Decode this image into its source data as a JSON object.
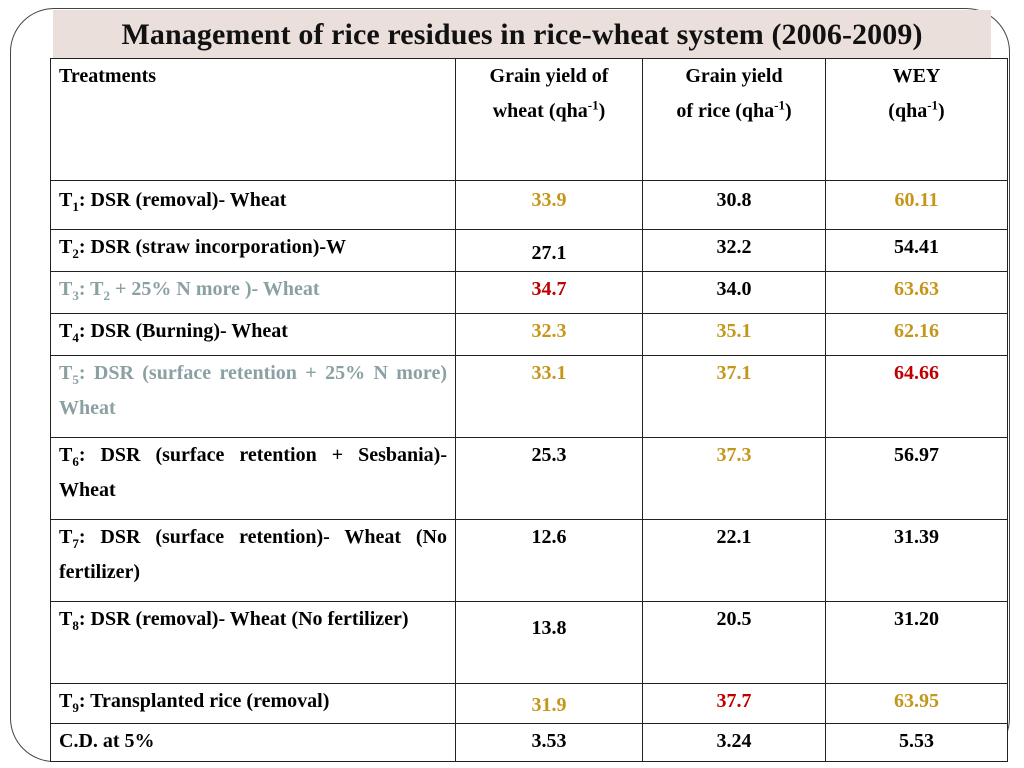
{
  "title": "Management of rice residues in rice-wheat system (2006-2009)",
  "colors": {
    "title_bg": "#eadfdb",
    "gold": "#c4971a",
    "red": "#c00000",
    "gray": "#8aa0a3"
  },
  "table": {
    "headers": {
      "treatments": "Treatments",
      "wheat_a": "Grain yield of",
      "wheat_b": "wheat (qha",
      "rice_a": "Grain yield",
      "rice_b": "of rice (qha",
      "wey_a": "WEY",
      "wey_b": "(qha",
      "sup": "-1",
      "close": ")"
    },
    "rows": [
      {
        "code": "T",
        "sub": "1",
        "label": ": DSR (removal)- Wheat",
        "wheat": "33.9",
        "rice": "30.8",
        "wey": "60.11"
      },
      {
        "code": "T",
        "sub": "2",
        "label": ": DSR (straw incorporation)-W",
        "wheat": "27.1",
        "rice": "32.2",
        "wey": "54.41"
      },
      {
        "code": "T",
        "sub": "3",
        "label_a": ": T",
        "sub2": "2",
        "label_b": " + 25% N more )- Wheat",
        "wheat": "34.7",
        "rice": "34.0",
        "wey": "63.63"
      },
      {
        "code": "T",
        "sub": "4",
        "label": ": DSR (Burning)- Wheat",
        "wheat": "32.3",
        "rice": "35.1",
        "wey": "62.16"
      },
      {
        "code": "T",
        "sub": "5",
        "label": ": DSR (surface retention + 25% N more) Wheat",
        "wheat": "33.1",
        "rice": "37.1",
        "wey": "64.66"
      },
      {
        "code": "T",
        "sub": "6",
        "label": ": DSR (surface retention + Sesbania)- Wheat",
        "wheat": "25.3",
        "rice": "37.3",
        "wey": "56.97"
      },
      {
        "code": "T",
        "sub": "7",
        "label": ": DSR (surface retention)- Wheat (No fertilizer)",
        "wheat": "12.6",
        "rice": "22.1",
        "wey": "31.39"
      },
      {
        "code": "T",
        "sub": "8",
        "label": ": DSR (removal)- Wheat (No fertilizer)",
        "wheat": "13.8",
        "rice": "20.5",
        "wey": "31.20"
      },
      {
        "code": "T",
        "sub": "9",
        "label": ": Transplanted rice (removal)",
        "wheat": "31.9",
        "rice": "37.7",
        "wey": "63.95"
      },
      {
        "label": "C.D. at 5%",
        "wheat": "3.53",
        "rice": "3.24",
        "wey": "5.53"
      }
    ]
  }
}
